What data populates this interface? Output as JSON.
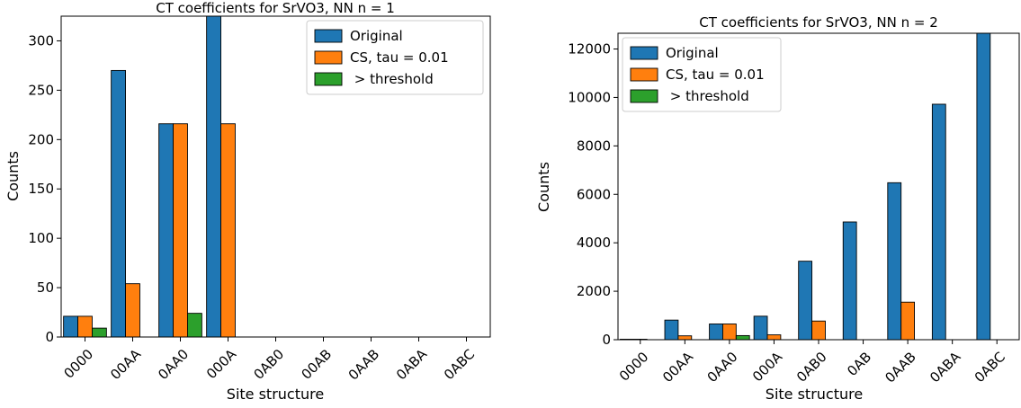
{
  "chart_data": [
    {
      "type": "bar",
      "title": "CT coefficients for SrVO3, NN n = 1",
      "xlabel": "Site structure",
      "ylabel": "Counts",
      "categories": [
        "0000",
        "00AA",
        "0AA0",
        "000A",
        "0AB0",
        "00AB",
        "0AAB",
        "0ABA",
        "0ABC"
      ],
      "ylim": [
        0,
        325
      ],
      "yticks": [
        0,
        50,
        100,
        150,
        200,
        250,
        300
      ],
      "legend_position": "top-right",
      "series": [
        {
          "name": "Original",
          "color": "#1f77b4",
          "values": [
            21,
            270,
            216,
            330,
            0,
            0,
            0,
            0,
            0
          ]
        },
        {
          "name": "CS, tau = 0.01",
          "color": "#ff7f0e",
          "values": [
            21,
            54,
            216,
            216,
            0,
            0,
            0,
            0,
            0
          ]
        },
        {
          "name": " > threshold",
          "color": "#2ca02c",
          "values": [
            9,
            0,
            24,
            0,
            0,
            0,
            0,
            0,
            0
          ]
        }
      ]
    },
    {
      "type": "bar",
      "title": "CT coefficients for SrVO3, NN n = 2",
      "xlabel": "Site structure",
      "ylabel": "Counts",
      "categories": [
        "0000",
        "00AA",
        "0AA0",
        "000A",
        "0AB0",
        "0AB",
        "0AAB",
        "0ABA",
        "0ABC"
      ],
      "ylim": [
        0,
        12650
      ],
      "yticks": [
        0,
        2000,
        4000,
        6000,
        8000,
        10000,
        12000
      ],
      "legend_position": "top-left",
      "series": [
        {
          "name": "Original",
          "color": "#1f77b4",
          "values": [
            20,
            810,
            650,
            970,
            3240,
            4860,
            6480,
            9720,
            12960
          ]
        },
        {
          "name": "CS, tau = 0.01",
          "color": "#ff7f0e",
          "values": [
            20,
            160,
            650,
            200,
            770,
            0,
            1550,
            0,
            0
          ]
        },
        {
          "name": " > threshold",
          "color": "#2ca02c",
          "values": [
            0,
            0,
            170,
            0,
            0,
            0,
            0,
            0,
            0
          ]
        }
      ]
    }
  ]
}
